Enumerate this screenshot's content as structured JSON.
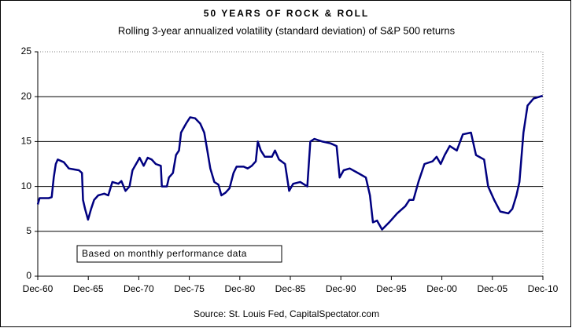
{
  "chart_data": {
    "type": "line",
    "title": "50 YEARS OF ROCK & ROLL",
    "subtitle": "Rolling 3-year annualized volatility (standard deviation) of S&P 500 returns",
    "annotation": "Based on monthly performance data",
    "source": "Source: St. Louis Fed, CapitalSpectator.com",
    "color": "#000080",
    "grid": true,
    "x": [
      1960.92,
      1961.1,
      1961.5,
      1962.0,
      1962.3,
      1962.5,
      1962.7,
      1962.9,
      1963.5,
      1964.0,
      1964.5,
      1965.0,
      1965.3,
      1965.4,
      1965.6,
      1965.9,
      1966.2,
      1966.5,
      1966.9,
      1967.5,
      1967.9,
      1968.3,
      1968.9,
      1969.2,
      1969.6,
      1970.0,
      1970.3,
      1970.8,
      1971.0,
      1971.4,
      1971.8,
      1972.2,
      1972.6,
      1973.1,
      1973.2,
      1973.7,
      1973.9,
      1974.3,
      1974.6,
      1974.9,
      1975.1,
      1975.6,
      1976.0,
      1976.5,
      1977.0,
      1977.4,
      1977.7,
      1978.0,
      1978.4,
      1978.8,
      1979.1,
      1979.5,
      1979.9,
      1980.3,
      1980.6,
      1981.3,
      1981.7,
      1982.1,
      1982.5,
      1982.7,
      1983.0,
      1983.4,
      1984.1,
      1984.4,
      1984.8,
      1985.4,
      1985.8,
      1986.2,
      1986.9,
      1987.6,
      1987.9,
      1988.3,
      1989.1,
      1989.9,
      1990.5,
      1990.8,
      1991.2,
      1991.8,
      1992.6,
      1993.4,
      1993.8,
      1994.1,
      1994.5,
      1995.0,
      1995.7,
      1996.5,
      1997.3,
      1997.7,
      1998.1,
      1998.6,
      1999.2,
      2000.0,
      2000.4,
      2000.8,
      2001.2,
      2001.7,
      2002.4,
      2003.0,
      2003.8,
      2004.3,
      2005.1,
      2005.5,
      2006.1,
      2006.7,
      2007.5,
      2007.9,
      2008.3,
      2008.6,
      2009.0,
      2009.4,
      2010.0,
      2010.9
    ],
    "values": [
      8.0,
      8.7,
      8.7,
      8.7,
      8.8,
      11.0,
      12.5,
      13.0,
      12.7,
      12.0,
      11.9,
      11.8,
      11.5,
      8.5,
      7.5,
      6.3,
      7.5,
      8.5,
      9.0,
      9.2,
      9.0,
      10.5,
      10.3,
      10.6,
      9.5,
      10.0,
      11.8,
      12.8,
      13.2,
      12.3,
      13.2,
      13.0,
      12.5,
      12.3,
      10.0,
      10.0,
      11.0,
      11.5,
      13.5,
      14.0,
      16.0,
      17.0,
      17.7,
      17.6,
      17.0,
      16.0,
      14.0,
      12.0,
      10.5,
      10.2,
      9.0,
      9.3,
      9.8,
      11.5,
      12.2,
      12.2,
      12.0,
      12.3,
      12.8,
      15.0,
      14.0,
      13.3,
      13.3,
      14.0,
      13.0,
      12.5,
      9.5,
      10.3,
      10.5,
      10.0,
      15.0,
      15.3,
      15.0,
      14.8,
      14.5,
      11.0,
      11.8,
      12.0,
      11.5,
      11.0,
      9.0,
      6.0,
      6.2,
      5.2,
      6.0,
      7.0,
      7.8,
      8.5,
      8.5,
      10.5,
      12.5,
      12.8,
      13.3,
      12.5,
      13.5,
      14.5,
      14.0,
      15.8,
      16.0,
      13.5,
      13.0,
      10.0,
      8.5,
      7.2,
      7.0,
      7.5,
      9.0,
      10.5,
      16.0,
      19.0,
      19.8,
      20.1
    ],
    "xlim": [
      1960.92,
      2010.92
    ],
    "xticks": [
      {
        "value": 1960.92,
        "label": "Dec-60"
      },
      {
        "value": 1965.92,
        "label": "Dec-65"
      },
      {
        "value": 1970.92,
        "label": "Dec-70"
      },
      {
        "value": 1975.92,
        "label": "Dec-75"
      },
      {
        "value": 1980.92,
        "label": "Dec-80"
      },
      {
        "value": 1985.92,
        "label": "Dec-85"
      },
      {
        "value": 1990.92,
        "label": "Dec-90"
      },
      {
        "value": 1995.92,
        "label": "Dec-95"
      },
      {
        "value": 2000.92,
        "label": "Dec-00"
      },
      {
        "value": 2005.92,
        "label": "Dec-05"
      },
      {
        "value": 2010.92,
        "label": "Dec-10"
      }
    ],
    "ylim": [
      0,
      25
    ],
    "yticks": [
      0,
      5,
      10,
      15,
      20,
      25
    ]
  }
}
